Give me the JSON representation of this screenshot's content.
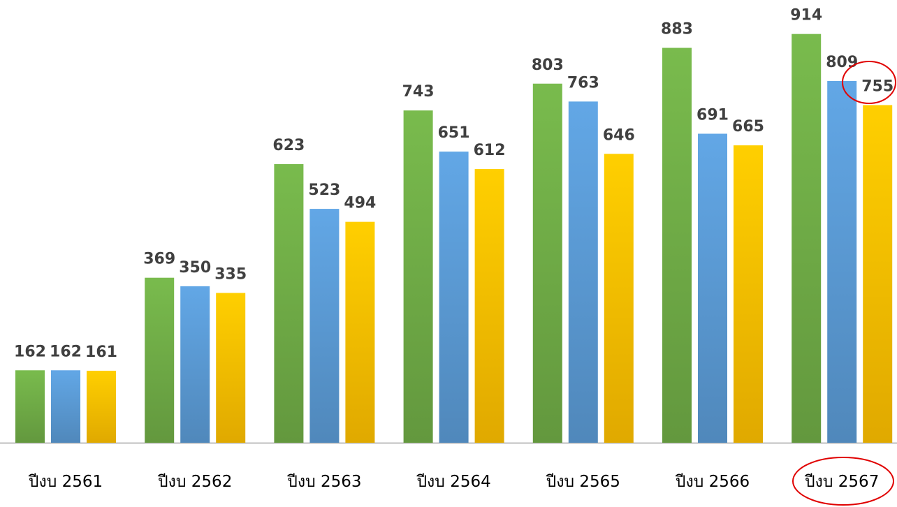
{
  "chart_data": {
    "type": "bar",
    "categories": [
      "ปีงบ 2561",
      "ปีงบ 2562",
      "ปีงบ 2563",
      "ปีงบ 2564",
      "ปีงบ 2565",
      "ปีงบ 2566",
      "ปีงบ 2567"
    ],
    "series": [
      {
        "color": "#70ad47",
        "values": [
          162,
          369,
          623,
          743,
          803,
          883,
          914
        ]
      },
      {
        "color": "#5b9bd5",
        "values": [
          162,
          350,
          523,
          651,
          763,
          691,
          809
        ]
      },
      {
        "color": "#ffc000",
        "values": [
          161,
          335,
          494,
          612,
          646,
          665,
          755
        ]
      }
    ],
    "ylim": [
      0,
      990
    ]
  }
}
